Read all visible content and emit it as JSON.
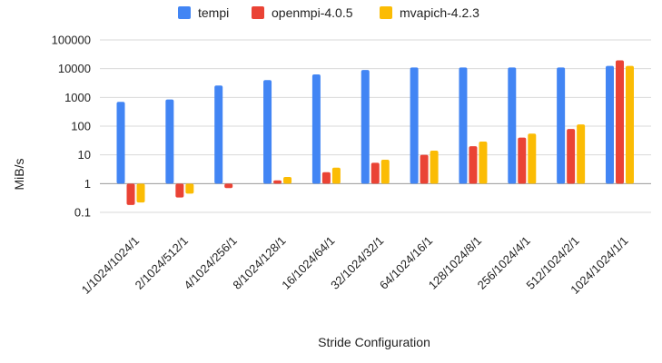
{
  "chart_data": {
    "type": "bar",
    "xlabel": "Stride Configuration",
    "ylabel": "MiB/s",
    "yscale": "log",
    "ylim": [
      0.1,
      100000
    ],
    "yticks": [
      "0.1",
      "1",
      "10",
      "100",
      "1000",
      "10000",
      "100000"
    ],
    "grid": true,
    "legend_position": "top",
    "categories": [
      "1/1024/1024/1",
      "2/1024/512/1",
      "4/1024/256/1",
      "8/1024/128/1",
      "16/1024/64/1",
      "32/1024/32/1",
      "64/1024/16/1",
      "128/1024/8/1",
      "256/1024/4/1",
      "512/1024/2/1",
      "1024/1024/1/1"
    ],
    "series": [
      {
        "name": "tempi",
        "color": "#4285f4",
        "values": [
          700,
          850,
          2600,
          4000,
          6300,
          9000,
          11000,
          11000,
          11000,
          11000,
          12500
        ]
      },
      {
        "name": "openmpi-4.0.5",
        "color": "#ea4335",
        "values": [
          0.18,
          0.33,
          0.7,
          1.3,
          2.5,
          5.3,
          10,
          20,
          40,
          80,
          19500
        ]
      },
      {
        "name": "mvapich-4.2.3",
        "color": "#fbbc04",
        "values": [
          0.22,
          0.45,
          null,
          1.7,
          3.6,
          6.8,
          14,
          29,
          55,
          115,
          12500
        ]
      }
    ]
  }
}
